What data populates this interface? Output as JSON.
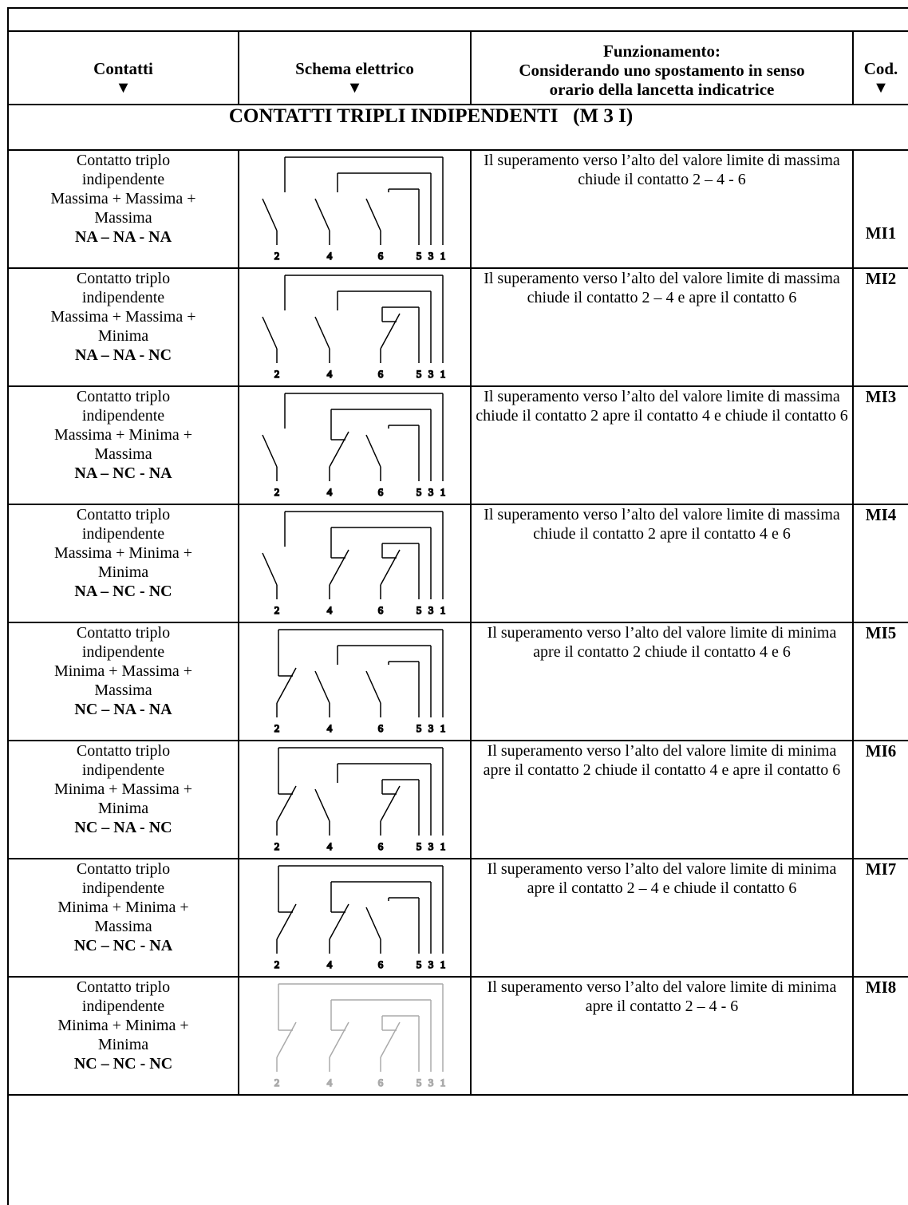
{
  "headers": {
    "contatti": "Contatti",
    "schema": "Schema elettrico",
    "funzionamento_line1": "Funzionamento:",
    "funzionamento_line2": "Considerando uno spostamento in senso",
    "funzionamento_line3": "orario della lancetta indicatrice",
    "cod": "Cod.",
    "arrow_glyph": "▼"
  },
  "section_title": "CONTATTI TRIPLI INDIPENDENTI   (M 3 I)",
  "rows": [
    {
      "contatti_lines": [
        "Contatto triplo",
        "indipendente",
        "Massima + Massima +",
        "Massima"
      ],
      "contact_type": "NA – NA - NA",
      "funzionamento": "Il superamento verso l’alto del valore limite di massima chiude il contatto 2 – 4 - 6",
      "code": "MI1",
      "terminals": [
        "2",
        "4",
        "6",
        "5",
        "3",
        "1"
      ],
      "switch_types": [
        "NA",
        "NA",
        "NA"
      ]
    },
    {
      "contatti_lines": [
        "Contatto triplo",
        "indipendente",
        "Massima + Massima +",
        "Minima"
      ],
      "contact_type": "NA – NA - NC",
      "funzionamento": "Il superamento verso l’alto del valore limite di massima chiude il contatto 2 – 4 e apre il contatto 6",
      "code": "MI2",
      "terminals": [
        "2",
        "4",
        "6",
        "5",
        "3",
        "1"
      ],
      "switch_types": [
        "NA",
        "NA",
        "NC"
      ]
    },
    {
      "contatti_lines": [
        "Contatto triplo",
        "indipendente",
        "Massima + Minima +",
        "Massima"
      ],
      "contact_type": "NA – NC - NA",
      "funzionamento": "Il superamento verso l’alto del valore limite di massima chiude il contatto 2 apre il contatto 4 e chiude il contatto 6",
      "code": "MI3",
      "terminals": [
        "2",
        "4",
        "6",
        "5",
        "3",
        "1"
      ],
      "switch_types": [
        "NA",
        "NC",
        "NA"
      ]
    },
    {
      "contatti_lines": [
        "Contatto triplo",
        "indipendente",
        "Massima + Minima +",
        "Minima"
      ],
      "contact_type": "NA – NC - NC",
      "funzionamento": "Il superamento verso l’alto del valore limite di massima chiude il contatto 2 apre il contatto 4 e 6",
      "code": "MI4",
      "terminals": [
        "2",
        "4",
        "6",
        "5",
        "3",
        "1"
      ],
      "switch_types": [
        "NA",
        "NC",
        "NC"
      ]
    },
    {
      "contatti_lines": [
        "Contatto triplo",
        "indipendente",
        "Minima + Massima +",
        "Massima"
      ],
      "contact_type": "NC – NA - NA",
      "funzionamento": "Il superamento verso l’alto del valore limite di minima apre il contatto 2 chiude il contatto 4 e 6",
      "code": "MI5",
      "terminals": [
        "2",
        "4",
        "6",
        "5",
        "3",
        "1"
      ],
      "switch_types": [
        "NC",
        "NA",
        "NA"
      ]
    },
    {
      "contatti_lines": [
        "Contatto triplo",
        "indipendente",
        "Minima + Massima +",
        "Minima"
      ],
      "contact_type": "NC – NA - NC",
      "funzionamento": "Il superamento verso l’alto del valore limite di minima apre il contatto 2 chiude il contatto 4 e apre il contatto 6",
      "code": "MI6",
      "terminals": [
        "2",
        "4",
        "6",
        "5",
        "3",
        "1"
      ],
      "switch_types": [
        "NC",
        "NA",
        "NC"
      ]
    },
    {
      "contatti_lines": [
        "Contatto triplo",
        "indipendente",
        "Minima + Minima +",
        "Massima"
      ],
      "contact_type": "NC – NC - NA",
      "funzionamento": "Il superamento verso l’alto del valore limite di minima apre il contatto 2 – 4 e chiude il contatto 6",
      "code": "MI7",
      "terminals": [
        "2",
        "4",
        "6",
        "5",
        "3",
        "1"
      ],
      "switch_types": [
        "NC",
        "NC",
        "NA"
      ]
    },
    {
      "contatti_lines": [
        "Contatto triplo",
        "indipendente",
        "Minima + Minima +",
        "Minima"
      ],
      "contact_type": "NC – NC - NC",
      "funzionamento": "Il superamento verso l’alto del valore limite di minima apre il contatto 2 – 4 - 6",
      "code": "MI8",
      "terminals": [
        "2",
        "4",
        "6",
        "5",
        "3",
        "1"
      ],
      "switch_types": [
        "NC",
        "NC",
        "NC"
      ],
      "diagram_color": "#aaaaaa"
    }
  ]
}
